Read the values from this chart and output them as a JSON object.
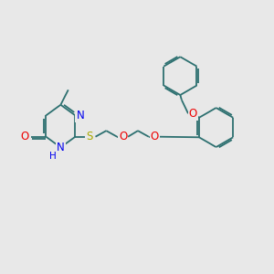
{
  "bg_color": "#e8e8e8",
  "bond_color": "#2d7070",
  "bond_width": 1.3,
  "atom_colors": {
    "N": "#0000ee",
    "O": "#ee0000",
    "S": "#aaaa00",
    "H": "#0000ee"
  },
  "font_size": 7.5
}
